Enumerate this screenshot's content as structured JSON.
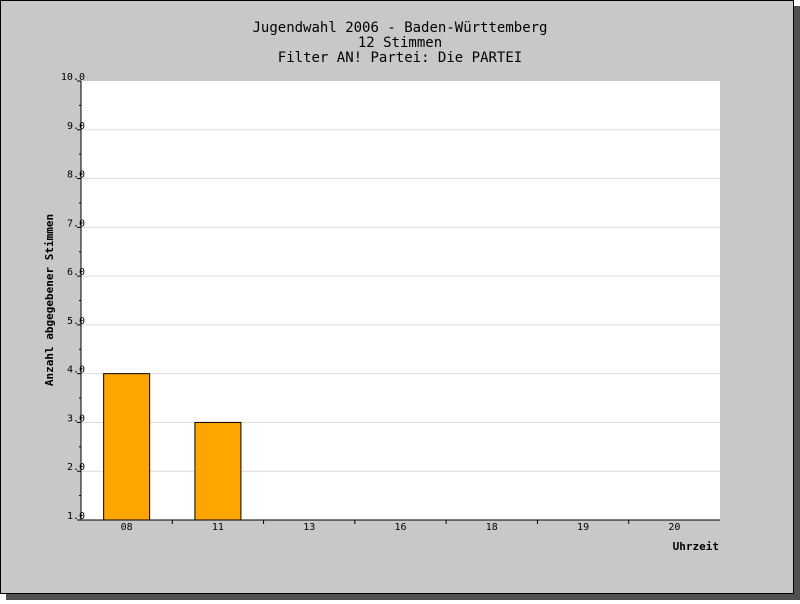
{
  "chart_data": {
    "type": "bar",
    "title": [
      "Jugendwahl 2006 - Baden-Württemberg",
      "12 Stimmen",
      "Filter AN! Partei: Die PARTEI"
    ],
    "xlabel": "Uhrzeit",
    "ylabel": "Anzahl abgegebener Stimmen",
    "categories": [
      "08",
      "11",
      "13",
      "16",
      "18",
      "19",
      "20"
    ],
    "values": [
      4,
      3,
      1,
      1,
      1,
      1,
      1
    ],
    "yticks": [
      "1.0",
      "2.0",
      "3.0",
      "4.0",
      "5.0",
      "6.0",
      "7.0",
      "8.0",
      "9.0",
      "10.0"
    ],
    "ylim": [
      1,
      10
    ],
    "grid": true,
    "colors": {
      "bar": "#ffa500",
      "frame_background": "#c8c8c8",
      "plot_background": "#ffffff",
      "gridline": "#dcdcdc",
      "shadow": "#505050"
    }
  }
}
